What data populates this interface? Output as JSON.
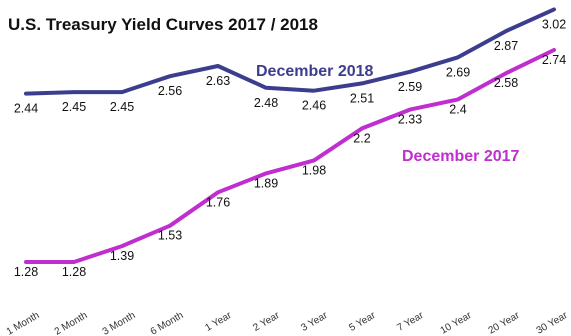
{
  "chart_data": {
    "type": "line",
    "title": "U.S. Treasury Yield Curves 2017 / 2018",
    "categories": [
      "1 Month",
      "2 Month",
      "3 Month",
      "6 Month",
      "1 Year",
      "2 Year",
      "3 Year",
      "5 Year",
      "7 Year",
      "10 Year",
      "20 Year",
      "30 Year"
    ],
    "series": [
      {
        "name": "December 2018",
        "color": "#3d3d8f",
        "values": [
          2.44,
          2.45,
          2.45,
          2.56,
          2.63,
          2.48,
          2.46,
          2.51,
          2.59,
          2.69,
          2.87,
          3.02
        ]
      },
      {
        "name": "December 2017",
        "color": "#c02ed0",
        "values": [
          1.28,
          1.28,
          1.39,
          1.53,
          1.76,
          1.89,
          1.98,
          2.2,
          2.33,
          2.4,
          2.58,
          2.74
        ]
      }
    ],
    "xlabel": "",
    "ylabel": "",
    "ylim": [
      1.17,
      3.05
    ],
    "grid": false,
    "legend": "inline labels"
  }
}
